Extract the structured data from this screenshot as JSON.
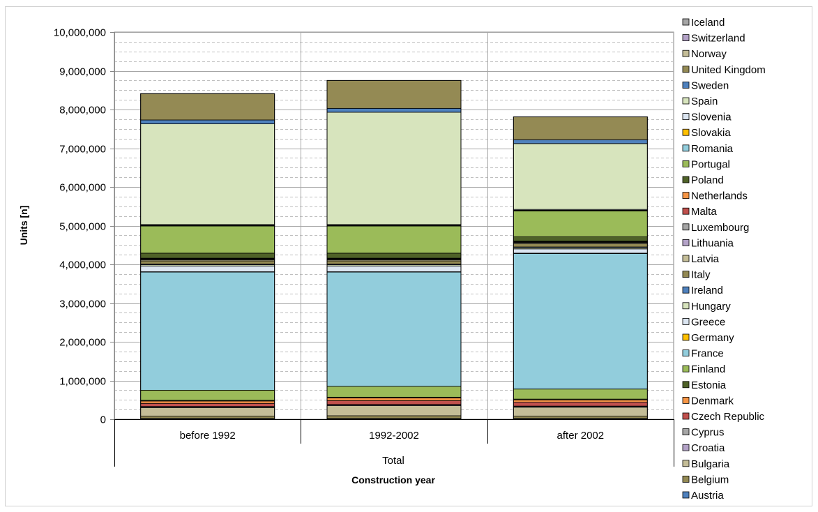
{
  "chart_data": {
    "type": "bar",
    "stacked": true,
    "title": "",
    "ylabel": "Units [n]",
    "xlabel": "Construction year",
    "group_label": "Total",
    "categories": [
      "before 1992",
      "1992-2002",
      "after 2002"
    ],
    "ylim": [
      0,
      10000000
    ],
    "y_major_ticks": [
      "0",
      "1,000,000",
      "2,000,000",
      "3,000,000",
      "4,000,000",
      "5,000,000",
      "6,000,000",
      "7,000,000",
      "8,000,000",
      "9,000,000",
      "10,000,000"
    ],
    "y_minor_step": 250000,
    "y_major_step": 1000000,
    "grid": true,
    "legend_position": "right",
    "series": [
      {
        "name": "Austria",
        "color": "#4f81bd",
        "values": [
          20000,
          20000,
          20000
        ]
      },
      {
        "name": "Belgium",
        "color": "#948a54",
        "values": [
          60000,
          70000,
          60000
        ]
      },
      {
        "name": "Bulgaria",
        "color": "#c4bd97",
        "values": [
          220000,
          260000,
          230000
        ]
      },
      {
        "name": "Croatia",
        "color": "#b3a2c7",
        "values": [
          20000,
          20000,
          20000
        ]
      },
      {
        "name": "Cyprus",
        "color": "#a6a6a6",
        "values": [
          10000,
          10000,
          10000
        ]
      },
      {
        "name": "Czech Republic",
        "color": "#c0504d",
        "values": [
          80000,
          100000,
          100000
        ]
      },
      {
        "name": "Denmark",
        "color": "#f79646",
        "values": [
          60000,
          70000,
          60000
        ]
      },
      {
        "name": "Estonia",
        "color": "#4f6228",
        "values": [
          20000,
          20000,
          20000
        ]
      },
      {
        "name": "Finland",
        "color": "#9bbb59",
        "values": [
          260000,
          280000,
          260000
        ]
      },
      {
        "name": "France",
        "color": "#92cddc",
        "values": [
          3050000,
          2950000,
          3500000
        ]
      },
      {
        "name": "Germany",
        "color": "#ffc000",
        "values": [
          10000,
          10000,
          10000
        ]
      },
      {
        "name": "Greece",
        "color": "#dbe5f1",
        "values": [
          150000,
          150000,
          110000
        ]
      },
      {
        "name": "Hungary",
        "color": "#d7e4bd",
        "values": [
          30000,
          30000,
          30000
        ]
      },
      {
        "name": "Ireland",
        "color": "#4f81bd",
        "values": [
          20000,
          20000,
          20000
        ]
      },
      {
        "name": "Italy",
        "color": "#938953",
        "values": [
          80000,
          80000,
          80000
        ]
      },
      {
        "name": "Latvia",
        "color": "#c4bd97",
        "values": [
          30000,
          30000,
          30000
        ]
      },
      {
        "name": "Lithuania",
        "color": "#b3a2c7",
        "values": [
          10000,
          10000,
          10000
        ]
      },
      {
        "name": "Luxembourg",
        "color": "#a6a6a6",
        "values": [
          10000,
          10000,
          10000
        ]
      },
      {
        "name": "Malta",
        "color": "#c0504d",
        "values": [
          10000,
          10000,
          10000
        ]
      },
      {
        "name": "Netherlands",
        "color": "#f79646",
        "values": [
          10000,
          10000,
          10000
        ]
      },
      {
        "name": "Poland",
        "color": "#4f6228",
        "values": [
          130000,
          130000,
          110000
        ]
      },
      {
        "name": "Portugal",
        "color": "#9bbb59",
        "values": [
          700000,
          700000,
          670000
        ]
      },
      {
        "name": "Romania",
        "color": "#92cddc",
        "values": [
          10000,
          10000,
          10000
        ]
      },
      {
        "name": "Slovakia",
        "color": "#ffc000",
        "values": [
          10000,
          10000,
          10000
        ]
      },
      {
        "name": "Slovenia",
        "color": "#dbe5f1",
        "values": [
          20000,
          20000,
          20000
        ]
      },
      {
        "name": "Spain",
        "color": "#d7e4bd",
        "values": [
          2600000,
          2900000,
          1700000
        ]
      },
      {
        "name": "Sweden",
        "color": "#4f81bd",
        "values": [
          100000,
          100000,
          100000
        ]
      },
      {
        "name": "United Kingdom",
        "color": "#948a54",
        "values": [
          680000,
          720000,
          590000
        ]
      },
      {
        "name": "Norway",
        "color": "#c4bd97",
        "values": [
          0,
          0,
          0
        ]
      },
      {
        "name": "Switzerland",
        "color": "#b3a2c7",
        "values": [
          0,
          0,
          0
        ]
      },
      {
        "name": "Iceland",
        "color": "#a6a6a6",
        "values": [
          0,
          0,
          0
        ]
      }
    ]
  }
}
